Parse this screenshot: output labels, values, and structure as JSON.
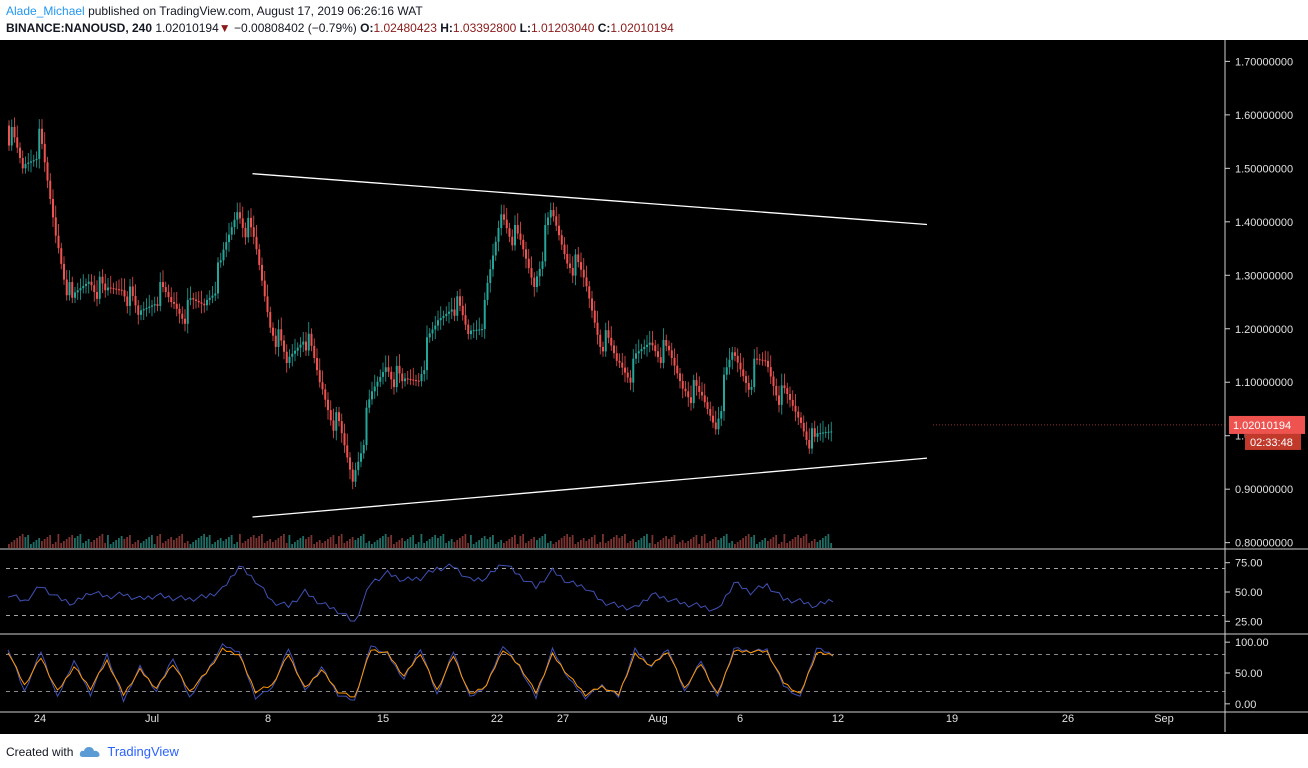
{
  "header": {
    "author": "Alade_Michael",
    "published": "published on TradingView.com, August 17, 2019 06:26:16 WAT",
    "symbol": "BINANCE:NANOUSD, 240",
    "last": "1.02010194",
    "change_arrow": "▼",
    "change": "−0.00808402 (−0.79%)",
    "o_label": "O:",
    "o_value": "1.02480423",
    "h_label": "H:",
    "h_value": "1.03392800",
    "l_label": "L:",
    "l_value": "1.01203040",
    "c_label": "C:",
    "c_value": "1.02010194"
  },
  "footer": {
    "created_with": "Created with",
    "brand": "TradingView",
    "logo_icon": "tradingview-cloud-icon"
  },
  "colors": {
    "background": "#000000",
    "up": "#26a69a",
    "down": "#ef5350",
    "rsi": "#3f51b5",
    "stoch_k": "#3f51b5",
    "stoch_d": "#ff9800",
    "trendline": "#ffffff",
    "price_label": "#ef5350"
  },
  "chart_data": {
    "type": "candlestick",
    "symbol": "NANOUSD",
    "price_axis": {
      "ticks": [
        "1.70000000",
        "1.60000000",
        "1.50000000",
        "1.40000000",
        "1.30000000",
        "1.20000000",
        "1.10000000",
        "1.00000000",
        "0.90000000",
        "0.80000000"
      ],
      "range": [
        0.79,
        1.74
      ]
    },
    "last_price_label": "1.02010194",
    "countdown_label": "02:33:48",
    "time_axis": [
      "24",
      "Jul",
      "8",
      "15",
      "22",
      "27",
      "Aug",
      "6",
      "12",
      "19",
      "26",
      "Sep"
    ],
    "price_series": [
      {
        "day": 0,
        "close": 1.58
      },
      {
        "day": 1,
        "close": 1.5
      },
      {
        "day": 2,
        "close": 1.55
      },
      {
        "day": 3,
        "close": 1.38
      },
      {
        "day": 4,
        "close": 1.24
      },
      {
        "day": 5,
        "close": 1.3
      },
      {
        "day": 6,
        "close": 1.26
      },
      {
        "day": 7,
        "close": 1.29
      },
      {
        "day": 8,
        "close": 1.22
      },
      {
        "day": 9,
        "close": 1.27
      },
      {
        "day": 10,
        "close": 1.25
      },
      {
        "day": 11,
        "close": 1.23
      },
      {
        "day": 12,
        "close": 1.25
      },
      {
        "day": 13,
        "close": 1.31
      },
      {
        "day": 14,
        "close": 1.43
      },
      {
        "day": 15,
        "close": 1.36
      },
      {
        "day": 16,
        "close": 1.22
      },
      {
        "day": 17,
        "close": 1.13
      },
      {
        "day": 18,
        "close": 1.2
      },
      {
        "day": 19,
        "close": 1.1
      },
      {
        "day": 20,
        "close": 1.02
      },
      {
        "day": 21,
        "close": 0.92
      },
      {
        "day": 22,
        "close": 1.05
      },
      {
        "day": 23,
        "close": 1.14
      },
      {
        "day": 24,
        "close": 1.09
      },
      {
        "day": 25,
        "close": 1.12
      },
      {
        "day": 26,
        "close": 1.2
      },
      {
        "day": 27,
        "close": 1.26
      },
      {
        "day": 28,
        "close": 1.19
      },
      {
        "day": 29,
        "close": 1.23
      },
      {
        "day": 30,
        "close": 1.42
      },
      {
        "day": 31,
        "close": 1.36
      },
      {
        "day": 32,
        "close": 1.29
      },
      {
        "day": 33,
        "close": 1.41
      },
      {
        "day": 34,
        "close": 1.34
      },
      {
        "day": 35,
        "close": 1.29
      },
      {
        "day": 36,
        "close": 1.19
      },
      {
        "day": 37,
        "close": 1.14
      },
      {
        "day": 38,
        "close": 1.12
      },
      {
        "day": 39,
        "close": 1.18
      },
      {
        "day": 40,
        "close": 1.15
      },
      {
        "day": 41,
        "close": 1.1
      },
      {
        "day": 42,
        "close": 1.07
      },
      {
        "day": 43,
        "close": 1.03
      },
      {
        "day": 44,
        "close": 1.15
      },
      {
        "day": 45,
        "close": 1.11
      },
      {
        "day": 46,
        "close": 1.14
      },
      {
        "day": 47,
        "close": 1.07
      },
      {
        "day": 48,
        "close": 1.04
      },
      {
        "day": 49,
        "close": 0.98
      },
      {
        "day": 50,
        "close": 1.02
      }
    ],
    "trendlines": [
      {
        "name": "resistance",
        "from": {
          "day": 13,
          "price": 1.49
        },
        "to": {
          "day": 50,
          "price": 1.395
        }
      },
      {
        "name": "support",
        "from": {
          "day": 13,
          "price": 0.848
        },
        "to": {
          "day": 50,
          "price": 0.958
        }
      }
    ],
    "rsi": {
      "levels": [
        70,
        30
      ],
      "ticks": [
        "75.00",
        "50.00",
        "25.00"
      ],
      "range": [
        15,
        85
      ],
      "values": [
        48,
        42,
        55,
        45,
        40,
        50,
        46,
        48,
        44,
        47,
        45,
        44,
        46,
        52,
        72,
        60,
        42,
        38,
        50,
        40,
        34,
        24,
        58,
        66,
        60,
        62,
        70,
        72,
        60,
        62,
        75,
        64,
        54,
        68,
        58,
        54,
        42,
        38,
        36,
        48,
        44,
        40,
        38,
        34,
        58,
        50,
        56,
        44,
        42,
        38,
        44
      ]
    },
    "stoch": {
      "levels": [
        80,
        20
      ],
      "ticks": [
        "100.00",
        "50.00",
        "0.00"
      ],
      "range": [
        -10,
        110
      ],
      "k": [
        90,
        20,
        85,
        10,
        70,
        15,
        80,
        5,
        60,
        20,
        75,
        10,
        50,
        95,
        85,
        10,
        25,
        90,
        20,
        60,
        15,
        5,
        95,
        80,
        40,
        90,
        15,
        85,
        10,
        30,
        95,
        60,
        10,
        88,
        40,
        10,
        30,
        12,
        88,
        60,
        90,
        20,
        70,
        10,
        90,
        85,
        88,
        30,
        10,
        90,
        80
      ],
      "d": [
        85,
        30,
        75,
        20,
        60,
        25,
        70,
        15,
        55,
        25,
        65,
        20,
        50,
        88,
        80,
        20,
        30,
        80,
        25,
        55,
        20,
        10,
        88,
        82,
        45,
        82,
        22,
        78,
        15,
        30,
        88,
        62,
        18,
        80,
        45,
        15,
        28,
        15,
        80,
        62,
        85,
        25,
        65,
        15,
        85,
        85,
        85,
        35,
        15,
        82,
        80
      ]
    }
  }
}
